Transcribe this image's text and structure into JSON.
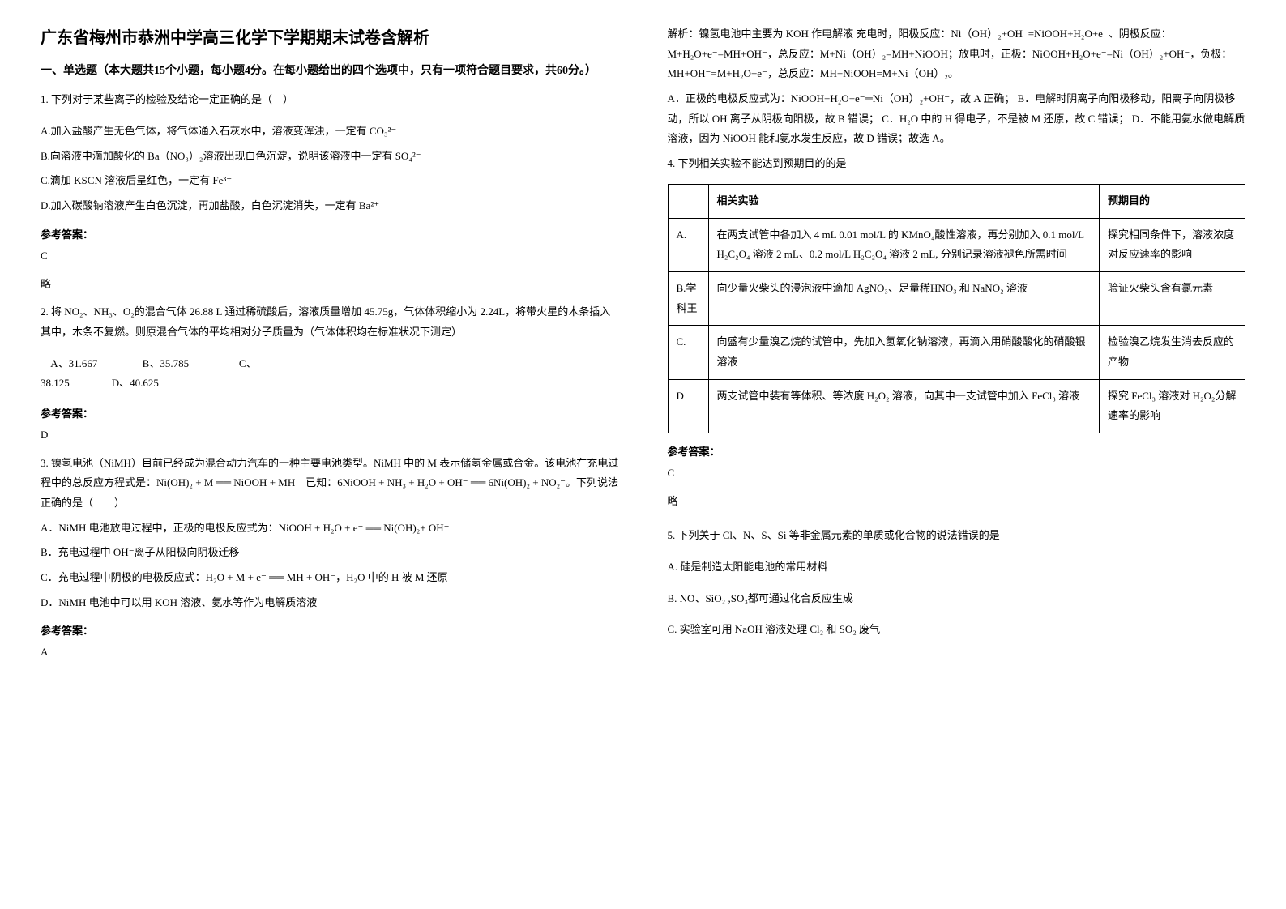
{
  "title": "广东省梅州市恭洲中学高三化学下学期期末试卷含解析",
  "section1_header": "一、单选题（本大题共15个小题，每小题4分。在每小题给出的四个选项中，只有一项符合题目要求，共60分。）",
  "q1": {
    "stem": "1. 下列对于某些离子的检验及结论一定正确的是（　）",
    "optA": "A.加入盐酸产生无色气体，将气体通入石灰水中，溶液变浑浊，一定有 CO₃²⁻",
    "optB": "B.向溶液中滴加酸化的 Ba（NO₃）₂溶液出现白色沉淀，说明该溶液中一定有 SO₄²⁻",
    "optC": "C.滴加 KSCN 溶液后呈红色，一定有 Fe³⁺",
    "optD": "D.加入碳酸钠溶液产生白色沉淀，再加盐酸，白色沉淀消失，一定有 Ba²⁺",
    "answer_label": "参考答案：",
    "answer": "C",
    "explain": "略"
  },
  "q2": {
    "stem": "2. 将 NO₂、NH₃、O₂的混合气体 26.88 L 通过稀硫酸后，溶液质量增加 45.75g，气体体积缩小为 2.24L，将带火星的木条插入其中，木条不复燃。则原混合气体的平均相对分子质量为（气体体积均在标准状况下测定）",
    "opts_line1": "    A、31.667                 B、35.785                   C、",
    "opts_line2": "38.125                D、40.625",
    "answer_label": "参考答案：",
    "answer": "D"
  },
  "q3": {
    "stem1": "3. 镍氢电池（NiMH）目前已经成为混合动力汽车的一种主要电池类型。NiMH 中的 M 表示储氢金属或合金。该电池在充电过程中的总反应方程式是：Ni(OH)₂ + M ══ NiOOH + MH　已知：6NiOOH + NH₃ + H₂O + OH⁻ ══ 6Ni(OH)₂ + NO₂⁻。下列说法正确的是（　　）",
    "optA": "A．NiMH 电池放电过程中，正极的电极反应式为：NiOOH + H₂O + e⁻ ══ Ni(OH)₂+ OH⁻",
    "optB": "B．充电过程中 OH⁻离子从阳极向阴极迁移",
    "optC": "C．充电过程中阴极的电极反应式：H₂O + M + e⁻ ══ MH + OH⁻，H₂O 中的 H 被 M 还原",
    "optD": "D．NiMH 电池中可以用 KOH 溶液、氨水等作为电解质溶液",
    "answer_label": "参考答案：",
    "answer": "A"
  },
  "q3_explain": {
    "line1": "解析：镍氢电池中主要为 KOH 作电解液 充电时，阳极反应：Ni（OH）₂+OH⁻=NiOOH+H₂O+e⁻、阴极反应：M+H₂O+e⁻=MH+OH⁻，总反应：M+Ni（OH）₂=MH+NiOOH；放电时，正极：NiOOH+H₂O+e⁻=Ni（OH）₂+OH⁻，负极：MH+OH⁻=M+H₂O+e⁻，总反应：MH+NiOOH=M+Ni（OH）₂。",
    "line2": "A．正极的电极反应式为：NiOOH+H₂O+e⁻═Ni（OH）₂+OH⁻，故 A 正确； B．电解时阴离子向阳极移动，阳离子向阴极移动，所以 OH 离子从阴极向阳极，故 B 错误； C．H₂O 中的 H 得电子，不是被 M 还原，故 C 错误； D．不能用氨水做电解质溶液，因为 NiOOH 能和氨水发生反应，故 D 错误；故选 A。"
  },
  "q4": {
    "stem": "4. 下列相关实验不能达到预期目的的是",
    "table": {
      "header": [
        "",
        "相关实验",
        "预期目的"
      ],
      "rows": [
        [
          "A.",
          "在两支试管中各加入 4 mL  0.01 mol/L 的 KMnO₄酸性溶液，再分别加入 0.1 mol/L H₂C₂O₄ 溶液 2 mL、0.2 mol/L H₂C₂O₄ 溶液 2 mL, 分别记录溶液褪色所需时间",
          "探究相同条件下，溶液浓度对反应速率的影响"
        ],
        [
          "B.学科王",
          "向少量火柴头的浸泡液中滴加 AgNO₃、足量稀HNO₃ 和 NaNO₂ 溶液",
          "验证火柴头含有氯元素"
        ],
        [
          "C.",
          "向盛有少量溴乙烷的试管中，先加入氢氧化钠溶液，再滴入用硝酸酸化的硝酸银溶液",
          "检验溴乙烷发生消去反应的产物"
        ],
        [
          "D",
          "两支试管中装有等体积、等浓度 H₂O₂ 溶液，向其中一支试管中加入 FeCl₃ 溶液",
          "探究 FeCl₃ 溶液对 H₂O₂分解速率的影响"
        ]
      ]
    },
    "answer_label": "参考答案：",
    "answer": "C",
    "explain": "略"
  },
  "q5": {
    "stem": "5. 下列关于 Cl、N、S、Si 等非金属元素的单质或化合物的说法错误的是",
    "optA": "A.  硅是制造太阳能电池的常用材料",
    "optB": "B.  NO、SiO₂ ,SO₃都可通过化合反应生成",
    "optC": "C.  实验室可用 NaOH 溶液处理 Cl₂ 和 SO₂ 废气"
  }
}
